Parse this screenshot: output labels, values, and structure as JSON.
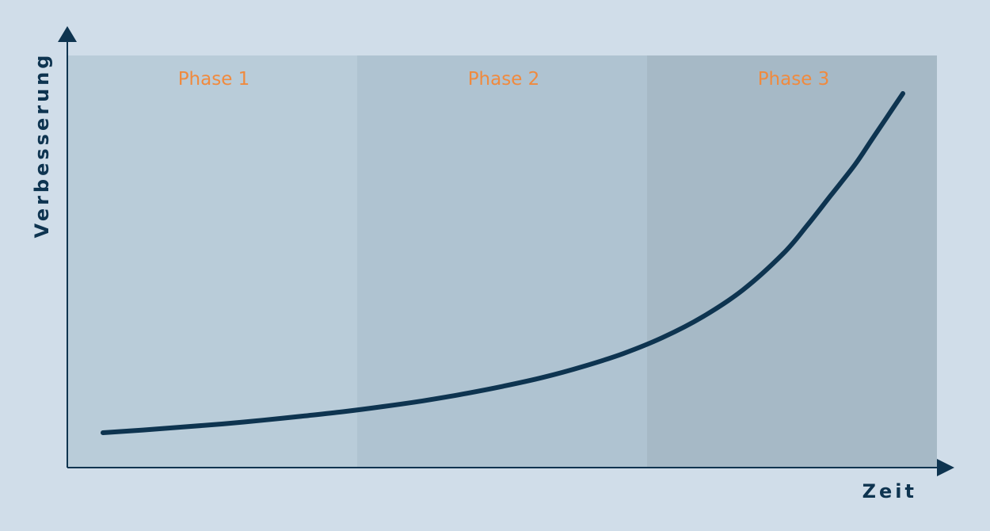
{
  "chart_data": {
    "type": "line",
    "xlabel": "Zeit",
    "ylabel": "Verbesserung",
    "phases": [
      "Phase 1",
      "Phase 2",
      "Phase 3"
    ],
    "series": [
      {
        "x": [
          0,
          0.05,
          0.1,
          0.15,
          0.2,
          0.25,
          0.3,
          0.35,
          0.4,
          0.45,
          0.5,
          0.55,
          0.6,
          0.65,
          0.7,
          0.75,
          0.8,
          0.85,
          0.88,
          0.91,
          0.94,
          0.96,
          0.98,
          1.0
        ],
        "values": [
          0,
          0.008,
          0.017,
          0.026,
          0.037,
          0.049,
          0.062,
          0.077,
          0.094,
          0.114,
          0.137,
          0.163,
          0.195,
          0.233,
          0.281,
          0.342,
          0.421,
          0.527,
          0.61,
          0.7,
          0.79,
          0.86,
          0.93,
          1.0
        ]
      }
    ],
    "xlim": [
      0,
      1
    ],
    "ylim": [
      0,
      1
    ],
    "grid": false,
    "legend": "none",
    "colors": {
      "line": "#0e3450",
      "axis": "#0e3450",
      "phase_label": "#f08a3e",
      "page_background": "#d0dde9",
      "phase_backgrounds": [
        "#b9ccd9",
        "#afc3d1",
        "#a6b9c6"
      ]
    }
  }
}
